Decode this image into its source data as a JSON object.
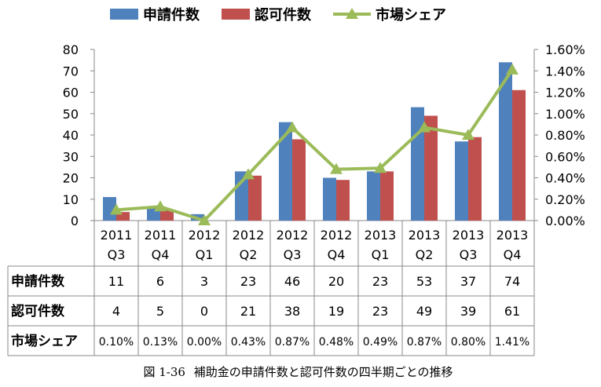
{
  "chart_data": {
    "type": "bar",
    "categories": [
      [
        "2011",
        "Q3"
      ],
      [
        "2011",
        "Q4"
      ],
      [
        "2012",
        "Q1"
      ],
      [
        "2012",
        "Q2"
      ],
      [
        "2012",
        "Q3"
      ],
      [
        "2012",
        "Q4"
      ],
      [
        "2013",
        "Q1"
      ],
      [
        "2013",
        "Q2"
      ],
      [
        "2013",
        "Q3"
      ],
      [
        "2013",
        "Q4"
      ]
    ],
    "series": [
      {
        "name": "申請件数",
        "type": "bar",
        "axis": "left",
        "color": "#4f81bd",
        "values": [
          11,
          6,
          3,
          23,
          46,
          20,
          23,
          53,
          37,
          74
        ]
      },
      {
        "name": "認可件数",
        "type": "bar",
        "axis": "left",
        "color": "#c0504d",
        "values": [
          4,
          5,
          0,
          21,
          38,
          19,
          23,
          49,
          39,
          61
        ]
      },
      {
        "name": "市場シェア",
        "type": "line",
        "axis": "right",
        "color": "#9bbb59",
        "marker": "triangle",
        "values": [
          0.1,
          0.13,
          0.0,
          0.43,
          0.87,
          0.48,
          0.49,
          0.87,
          0.8,
          1.41
        ]
      }
    ],
    "y_left": {
      "min": 0,
      "max": 80,
      "step": 10,
      "ticks": [
        "0",
        "10",
        "20",
        "30",
        "40",
        "50",
        "60",
        "70",
        "80"
      ]
    },
    "y_right": {
      "min": 0,
      "max": 1.6,
      "step": 0.2,
      "ticks": [
        "0.00%",
        "0.20%",
        "0.40%",
        "0.60%",
        "0.80%",
        "1.00%",
        "1.20%",
        "1.40%",
        "1.60%"
      ]
    },
    "legend_position": "top",
    "grid": false,
    "data_table": {
      "rows": [
        {
          "label": "申請件数",
          "cells": [
            "11",
            "6",
            "3",
            "23",
            "46",
            "20",
            "23",
            "53",
            "37",
            "74"
          ]
        },
        {
          "label": "認可件数",
          "cells": [
            "4",
            "5",
            "0",
            "21",
            "38",
            "19",
            "23",
            "49",
            "39",
            "61"
          ]
        },
        {
          "label": "市場シェア",
          "cells": [
            "0.10%",
            "0.13%",
            "0.00%",
            "0.43%",
            "0.87%",
            "0.48%",
            "0.49%",
            "0.87%",
            "0.80%",
            "1.41%"
          ]
        }
      ]
    }
  },
  "caption": {
    "label": "図 1-36",
    "text": "補助金の申請件数と認可件数の四半期ごとの推移"
  }
}
